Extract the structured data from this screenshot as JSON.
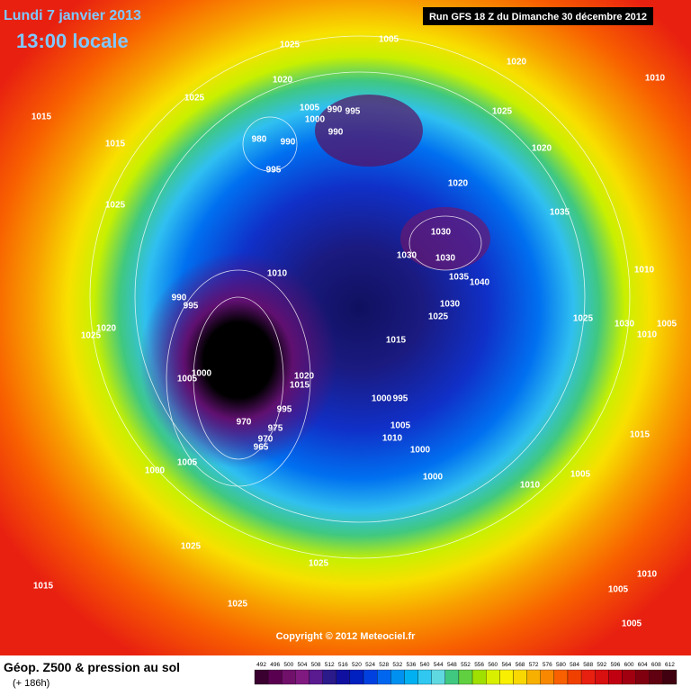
{
  "header": {
    "date": "Lundi 7 janvier 2013",
    "time": "13:00 locale",
    "run": "Run GFS 18 Z du Dimanche 30 décembre 2012"
  },
  "copyright": "Copyright © 2012 Meteociel.fr",
  "footer": {
    "title": "Géop. Z500 & pression au sol",
    "lead": "(+ 186h)"
  },
  "isobar_labels": [
    1025,
    1005,
    1020,
    1010,
    1025,
    1020,
    1015,
    1005,
    990,
    995,
    1000,
    990,
    1025,
    1015,
    980,
    990,
    995,
    1020,
    1025,
    1020,
    1035,
    1030,
    1030,
    1030,
    1010,
    1035,
    1040,
    1010,
    990,
    995,
    1030,
    1025,
    1025,
    1030,
    1005,
    1020,
    1025,
    1010,
    1015,
    1000,
    1005,
    1020,
    1015,
    1000,
    995,
    995,
    970,
    975,
    970,
    1005,
    1010,
    965,
    1000,
    1015,
    1005,
    1000,
    1005,
    1000,
    1010,
    1025,
    1025,
    1010,
    1015,
    1005,
    1025,
    1005
  ],
  "legend": {
    "values": [
      492,
      496,
      500,
      504,
      508,
      512,
      516,
      520,
      524,
      528,
      532,
      536,
      540,
      544,
      548,
      552,
      556,
      560,
      564,
      568,
      572,
      576,
      580,
      584,
      588,
      592,
      596,
      600,
      604,
      608,
      612
    ],
    "colors": [
      "#3a0030",
      "#5a0050",
      "#70106a",
      "#801a80",
      "#5a1a90",
      "#2a1a8a",
      "#1010a0",
      "#0020c0",
      "#0040e0",
      "#0066f0",
      "#0090f0",
      "#00b0f0",
      "#30c8f0",
      "#60d8e0",
      "#40c880",
      "#60d040",
      "#a0e000",
      "#d8f000",
      "#f8f000",
      "#f8d800",
      "#f8b000",
      "#f88800",
      "#f86000",
      "#f04000",
      "#e82010",
      "#d81010",
      "#c00010",
      "#a00010",
      "#800010",
      "#600010",
      "#400010"
    ]
  }
}
